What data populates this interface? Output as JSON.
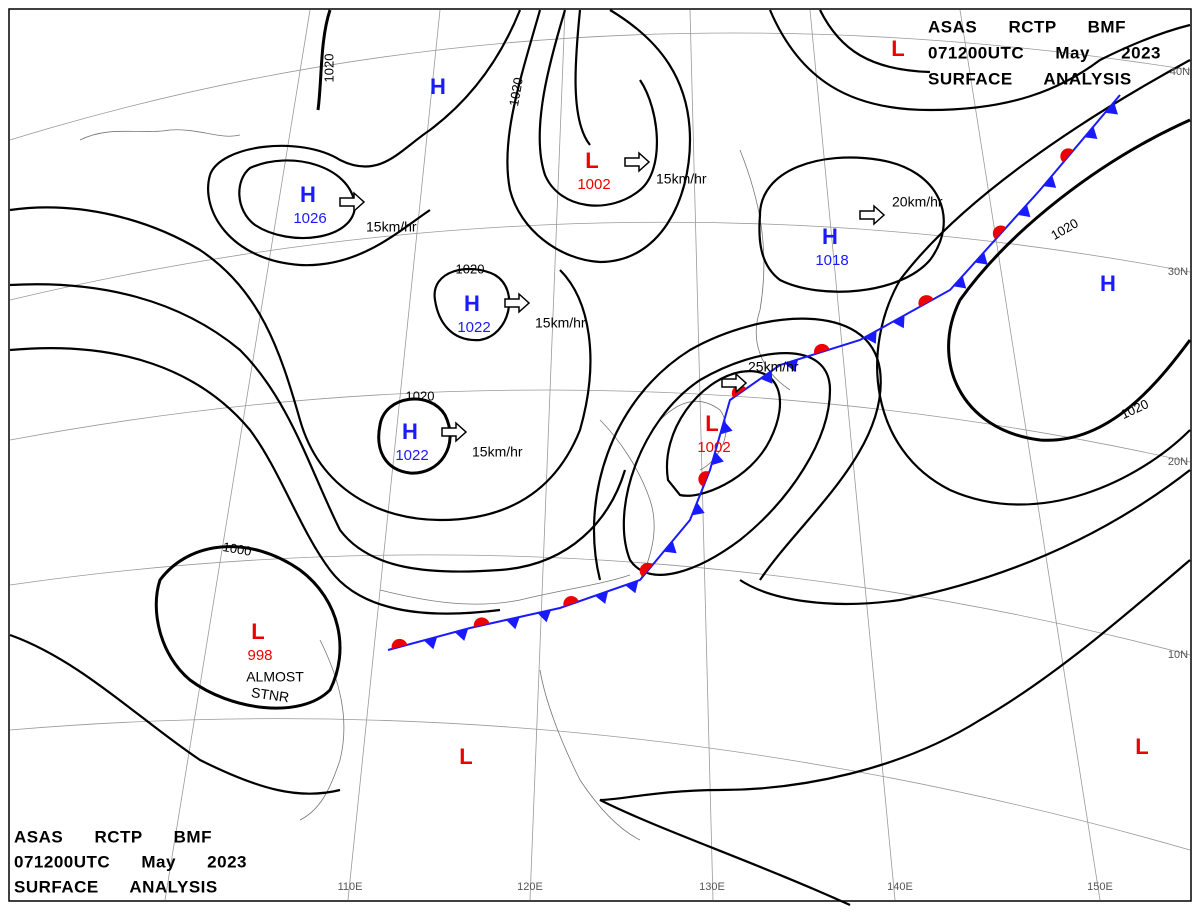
{
  "header": {
    "lines": [
      "ASAS RCTP BMF",
      "071200UTC May 2023",
      "SURFACE ANALYSIS"
    ]
  },
  "pressure_centers": [
    {
      "symbol": "H",
      "pressure": "1026"
    },
    {
      "symbol": "H"
    },
    {
      "symbol": "H",
      "pressure": "1022"
    },
    {
      "symbol": "H",
      "pressure": "1022"
    },
    {
      "symbol": "H",
      "pressure": "1018"
    },
    {
      "symbol": "H"
    },
    {
      "symbol": "L",
      "pressure": "1002"
    },
    {
      "symbol": "L",
      "pressure": "1002"
    },
    {
      "symbol": "L",
      "pressure": "998"
    },
    {
      "symbol": "L"
    },
    {
      "symbol": "L"
    },
    {
      "symbol": "L"
    }
  ],
  "isobar_labels": [
    "1020",
    "1020",
    "1020",
    "1020",
    "1000",
    "1020",
    "1020"
  ],
  "motions": [
    "15km/hr",
    "15km/hr",
    "15km/hr",
    "15km/hr",
    "20km/hr",
    "25km/hr"
  ],
  "annotation": [
    "ALMOST",
    "STNR"
  ],
  "latitude_labels": [
    "40N",
    "30N",
    "20N",
    "10N"
  ],
  "longitude_labels": [
    "110E",
    "120E",
    "130E",
    "140E",
    "150E"
  ]
}
